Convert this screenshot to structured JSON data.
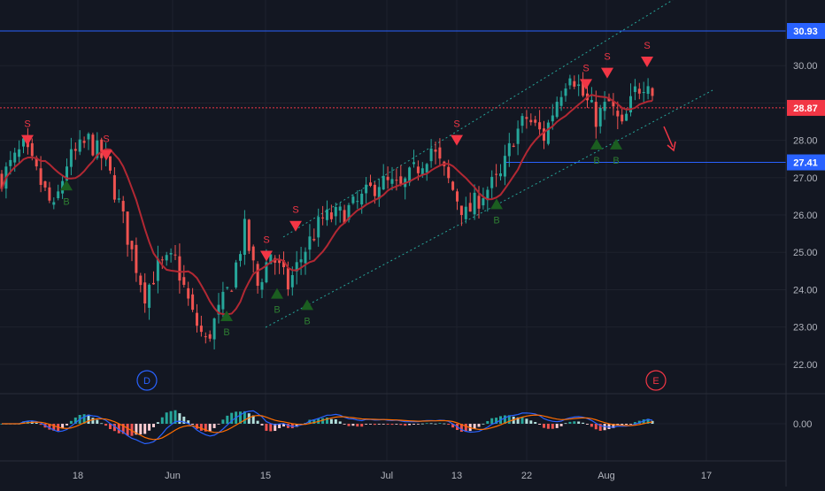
{
  "chart_data": {
    "type": "candlestick",
    "price_axis_ticks": [
      "30.00",
      "29.00",
      "28.00",
      "27.00",
      "26.00",
      "25.00",
      "24.00",
      "23.00",
      "22.00"
    ],
    "price_axis_tick_values": [
      30,
      29,
      28,
      27,
      26,
      25,
      24,
      23,
      22
    ],
    "price_range": [
      21.2,
      31.3
    ],
    "x_axis_ticks": [
      "18",
      "Jun",
      "15",
      "Jul",
      "13",
      "22",
      "Aug",
      "17"
    ],
    "oscillator_ticks": [
      "0.00"
    ],
    "price_labels": [
      {
        "text": "30.93",
        "value": 30.93,
        "color": "#2962ff",
        "line": "solid"
      },
      {
        "text": "28.87",
        "value": 28.87,
        "color": "#f23645",
        "line": "dotted"
      },
      {
        "text": "27.41",
        "value": 27.41,
        "color": "#2962ff",
        "line": "solid"
      }
    ],
    "signal_text": {
      "sell": "S",
      "buy": "B"
    },
    "event_markers": [
      {
        "text": "D",
        "color": "#2962ff"
      },
      {
        "text": "E",
        "color": "#f23645"
      }
    ],
    "moving_average_color": "#b22833",
    "channel_color": "#26a69a",
    "candle_colors": {
      "up": "#26a69a",
      "down": "#ef5350"
    },
    "signal_colors": {
      "sell": "#f23645",
      "buy": "#1b5e20"
    },
    "oscillator_colors": {
      "macd": "#2962ff",
      "signal": "#ff6d00",
      "hist_up": "#26a69a",
      "hist_down": "#ef5350"
    },
    "grid": true
  }
}
